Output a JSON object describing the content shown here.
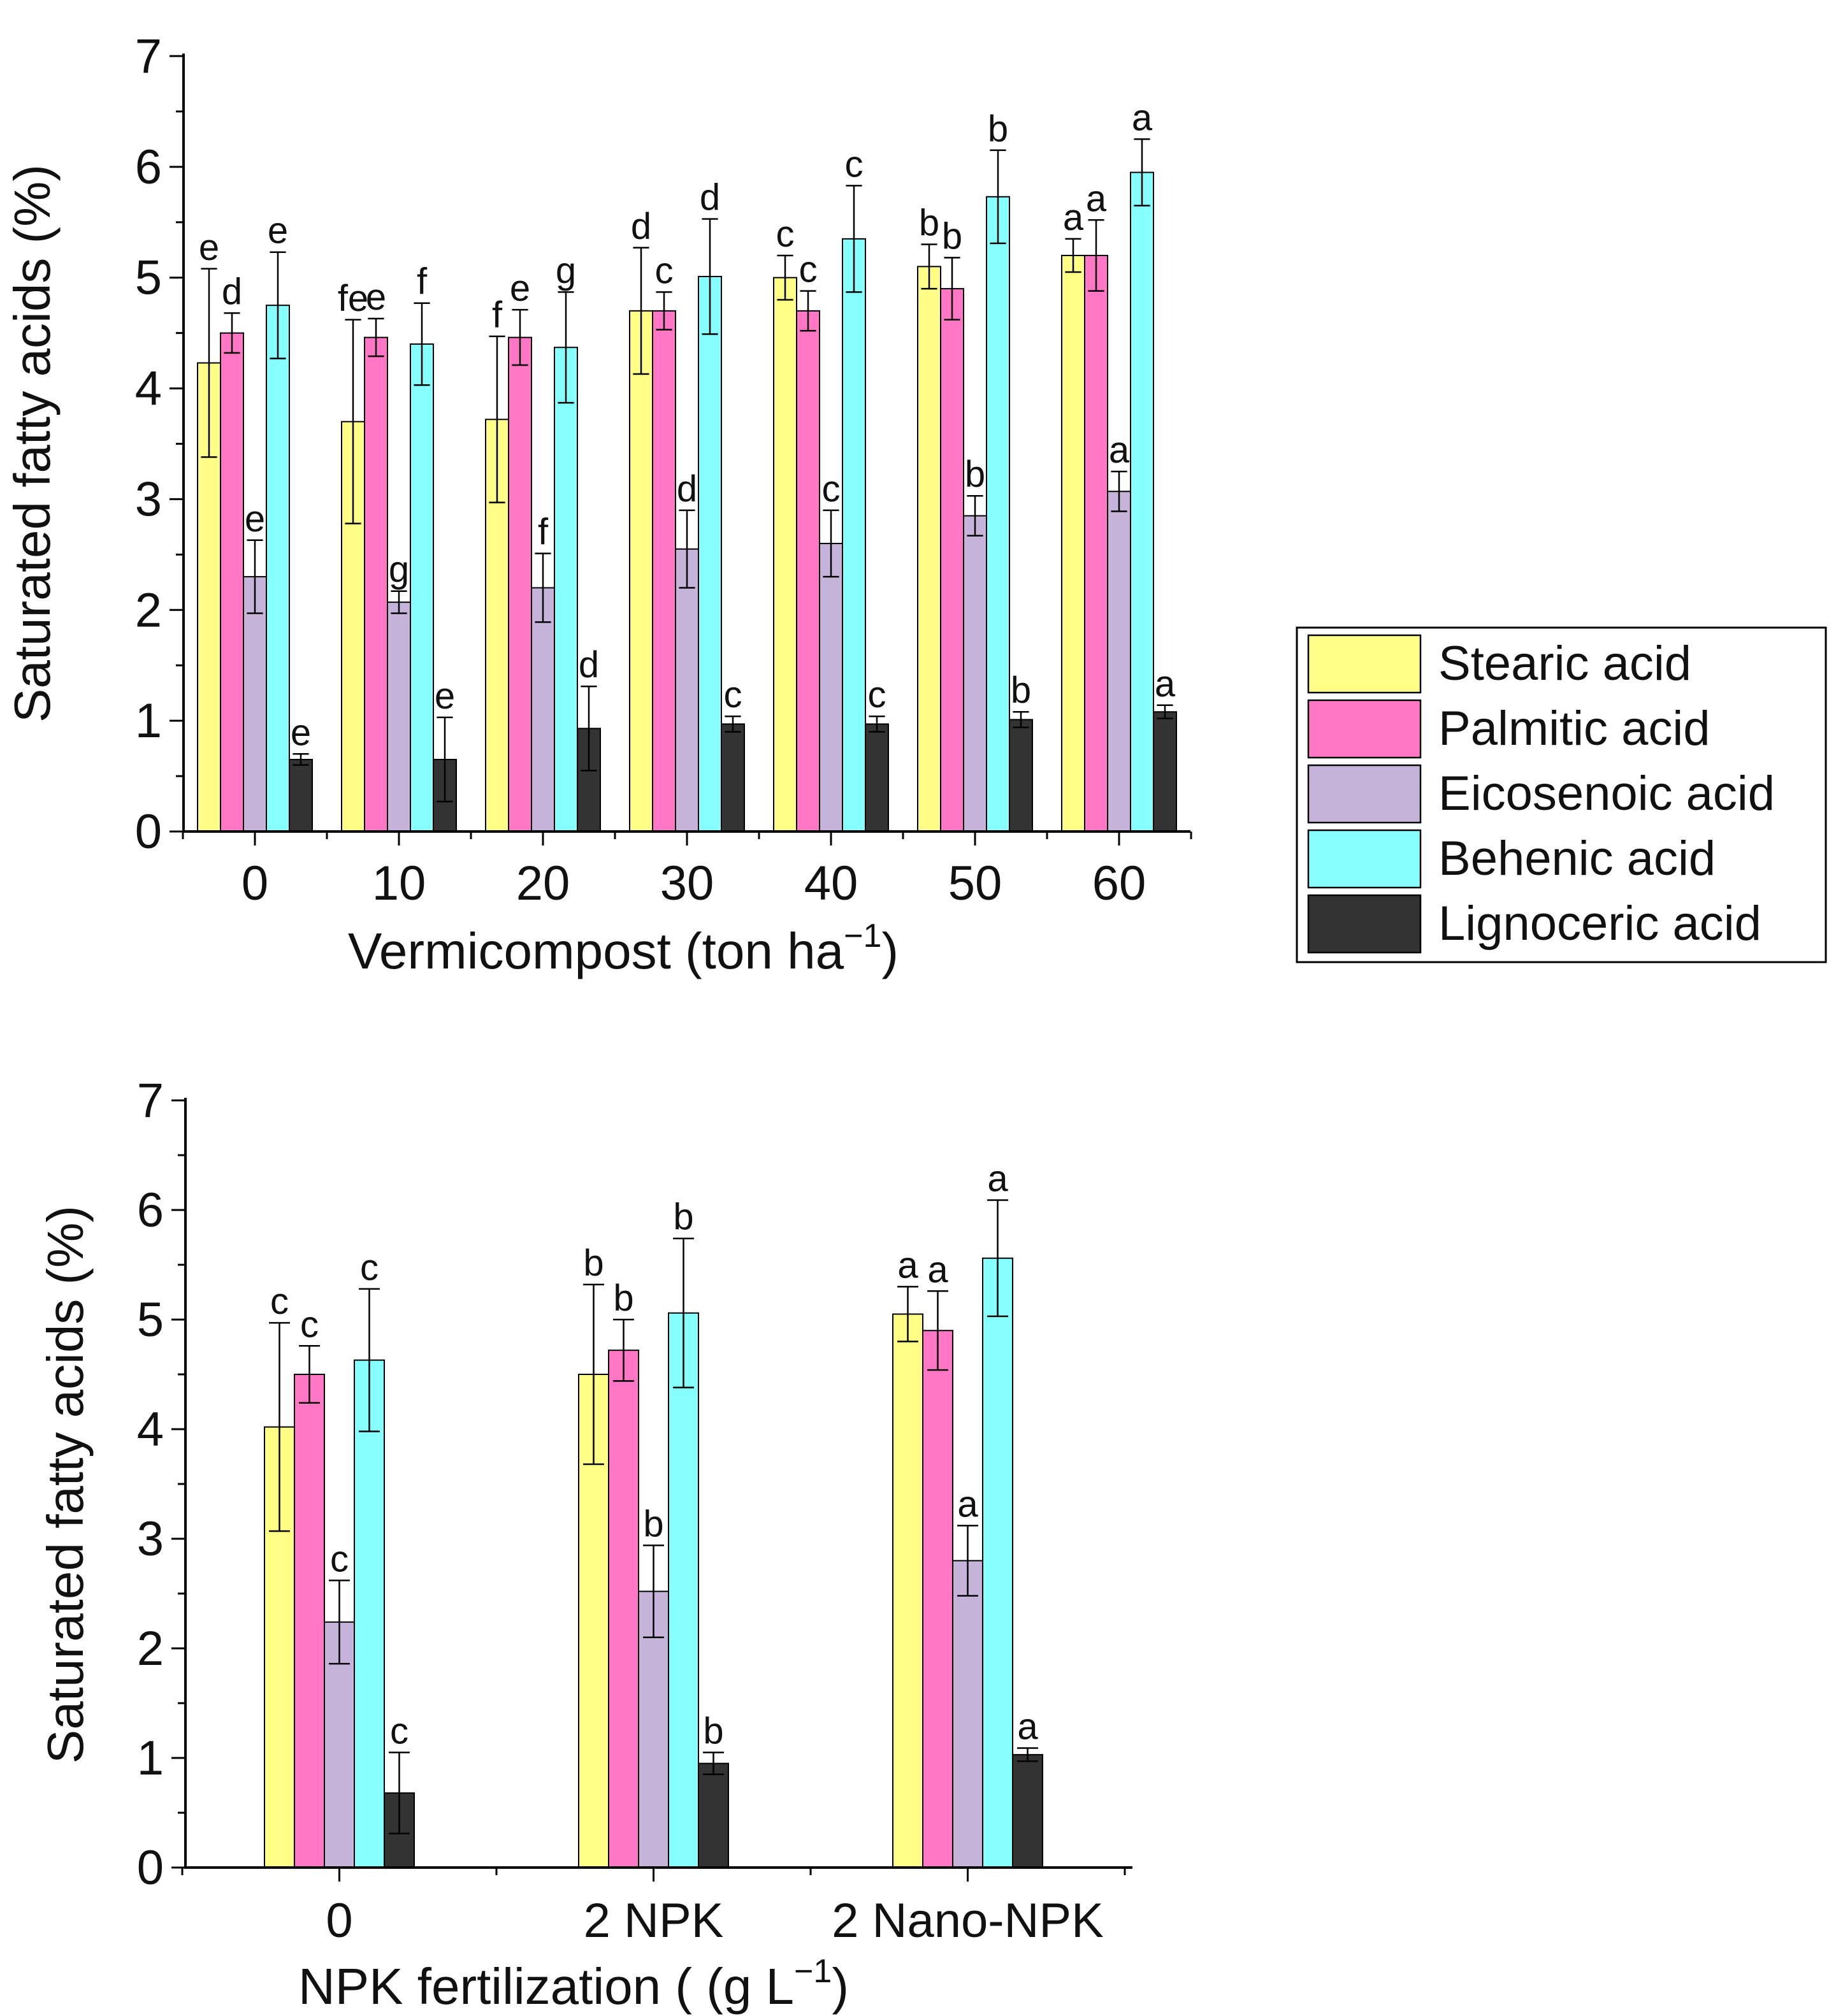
{
  "chart_data": [
    {
      "type": "bar",
      "ylabel": "Saturated fatty acids (%)",
      "xlabel_main": "Vermicompost (ton ha",
      "xlabel_sup": "−1",
      "xlabel_end": ")",
      "ylim": [
        0,
        7
      ],
      "yticks": [
        0,
        1,
        2,
        3,
        4,
        5,
        6,
        7
      ],
      "categories": [
        "0",
        "10",
        "20",
        "30",
        "40",
        "50",
        "60"
      ],
      "series": [
        {
          "name": "Stearic acid",
          "color": "#FFFF88",
          "values": [
            4.23,
            3.7,
            3.72,
            4.7,
            5.0,
            5.1,
            5.2
          ],
          "errors": [
            0.85,
            0.92,
            0.75,
            0.57,
            0.2,
            0.2,
            0.15
          ],
          "labels": [
            "e",
            "fe",
            "f",
            "d",
            "c",
            "b",
            "a"
          ]
        },
        {
          "name": "Palmitic acid",
          "color": "#FF77C5",
          "values": [
            4.5,
            4.46,
            4.46,
            4.7,
            4.7,
            4.9,
            5.2
          ],
          "errors": [
            0.18,
            0.17,
            0.25,
            0.17,
            0.18,
            0.28,
            0.32
          ],
          "labels": [
            "d",
            "e",
            "e",
            "c",
            "c",
            "b",
            "a"
          ]
        },
        {
          "name": "Eicosenoic acid",
          "color": "#C5B3D9",
          "values": [
            2.3,
            2.07,
            2.2,
            2.55,
            2.6,
            2.85,
            3.07
          ],
          "errors": [
            0.33,
            0.1,
            0.31,
            0.35,
            0.3,
            0.18,
            0.18
          ],
          "labels": [
            "e",
            "g",
            "f",
            "d",
            "c",
            "b",
            "a"
          ]
        },
        {
          "name": "Behenic acid",
          "color": "#88FFFF",
          "values": [
            4.75,
            4.4,
            4.37,
            5.01,
            5.35,
            5.73,
            5.95
          ],
          "errors": [
            0.48,
            0.37,
            0.5,
            0.52,
            0.48,
            0.42,
            0.3
          ],
          "labels": [
            "e",
            "f",
            "g",
            "d",
            "c",
            "b",
            "a"
          ]
        },
        {
          "name": "Lignoceric acid",
          "color": "#333333",
          "values": [
            0.65,
            0.65,
            0.93,
            0.97,
            0.97,
            1.01,
            1.08
          ],
          "errors": [
            0.05,
            0.38,
            0.38,
            0.07,
            0.07,
            0.07,
            0.06
          ],
          "labels": [
            "e",
            "e",
            "d",
            "c",
            "c",
            "b",
            "a"
          ]
        }
      ]
    },
    {
      "type": "bar",
      "ylabel": "Saturated fatty acids  (%)",
      "xlabel_main": "NPK fertilization ( (g L",
      "xlabel_sup": "−1",
      "xlabel_end": ")",
      "ylim": [
        0,
        7
      ],
      "yticks": [
        0,
        1,
        2,
        3,
        4,
        5,
        6,
        7
      ],
      "categories": [
        "0",
        "2 NPK",
        "2 Nano-NPK"
      ],
      "series": [
        {
          "name": "Stearic acid",
          "color": "#FFFF88",
          "values": [
            4.02,
            4.5,
            5.05
          ],
          "errors": [
            0.95,
            0.82,
            0.25
          ],
          "labels": [
            "c",
            "b",
            "a"
          ]
        },
        {
          "name": "Palmitic acid",
          "color": "#FF77C5",
          "values": [
            4.5,
            4.72,
            4.9
          ],
          "errors": [
            0.26,
            0.28,
            0.36
          ],
          "labels": [
            "c",
            "b",
            "a"
          ]
        },
        {
          "name": "Eicosenoic acid",
          "color": "#C5B3D9",
          "values": [
            2.24,
            2.52,
            2.8
          ],
          "errors": [
            0.38,
            0.42,
            0.32
          ],
          "labels": [
            "c",
            "b",
            "a"
          ]
        },
        {
          "name": "Behenic acid",
          "color": "#88FFFF",
          "values": [
            4.63,
            5.06,
            5.56
          ],
          "errors": [
            0.65,
            0.68,
            0.53
          ],
          "labels": [
            "c",
            "b",
            "a"
          ]
        },
        {
          "name": "Lignoceric acid",
          "color": "#333333",
          "values": [
            0.68,
            0.95,
            1.03
          ],
          "errors": [
            0.37,
            0.1,
            0.06
          ],
          "labels": [
            "c",
            "b",
            "a"
          ]
        }
      ]
    }
  ],
  "legend": {
    "placement": "right of top chart",
    "items": [
      "Stearic acid",
      "Palmitic acid",
      "Eicosenoic acid",
      "Behenic acid",
      "Lignoceric acid"
    ]
  }
}
